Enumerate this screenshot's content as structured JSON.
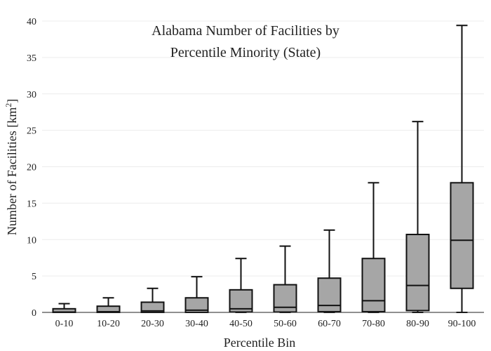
{
  "chart_data": {
    "type": "box",
    "title_lines": [
      "Alabama Number of Facilities by",
      "Percentile Minority (State)"
    ],
    "xlabel": "Percentile Bin",
    "ylabel_main": "Number of Facilities  [km",
    "ylabel_sup": "2",
    "ylabel_end": "]",
    "ylim": [
      0,
      40
    ],
    "yticks": [
      0,
      5,
      10,
      15,
      20,
      25,
      30,
      35,
      40
    ],
    "grid": true,
    "box_fill": "#a6a6a6",
    "line_color": "#111111",
    "categories": [
      "0-10",
      "10-20",
      "20-30",
      "30-40",
      "40-50",
      "50-60",
      "60-70",
      "70-80",
      "80-90",
      "90-100"
    ],
    "boxes": [
      {
        "min": 0,
        "q1": 0.0,
        "median": 0.05,
        "q3": 0.5,
        "max": 1.2
      },
      {
        "min": 0,
        "q1": 0.0,
        "median": 0.1,
        "q3": 0.85,
        "max": 2.0
      },
      {
        "min": 0,
        "q1": 0.0,
        "median": 0.2,
        "q3": 1.4,
        "max": 3.3
      },
      {
        "min": 0,
        "q1": 0.0,
        "median": 0.3,
        "q3": 2.0,
        "max": 4.9
      },
      {
        "min": 0,
        "q1": 0.05,
        "median": 0.5,
        "q3": 3.1,
        "max": 7.4
      },
      {
        "min": 0,
        "q1": 0.05,
        "median": 0.7,
        "q3": 3.8,
        "max": 9.1
      },
      {
        "min": 0,
        "q1": 0.1,
        "median": 0.95,
        "q3": 4.7,
        "max": 11.3
      },
      {
        "min": 0,
        "q1": 0.1,
        "median": 1.6,
        "q3": 7.4,
        "max": 17.8
      },
      {
        "min": 0,
        "q1": 0.25,
        "median": 3.7,
        "q3": 10.7,
        "max": 26.2
      },
      {
        "min": 0,
        "q1": 3.3,
        "median": 9.9,
        "q3": 17.8,
        "max": 39.4
      }
    ]
  }
}
